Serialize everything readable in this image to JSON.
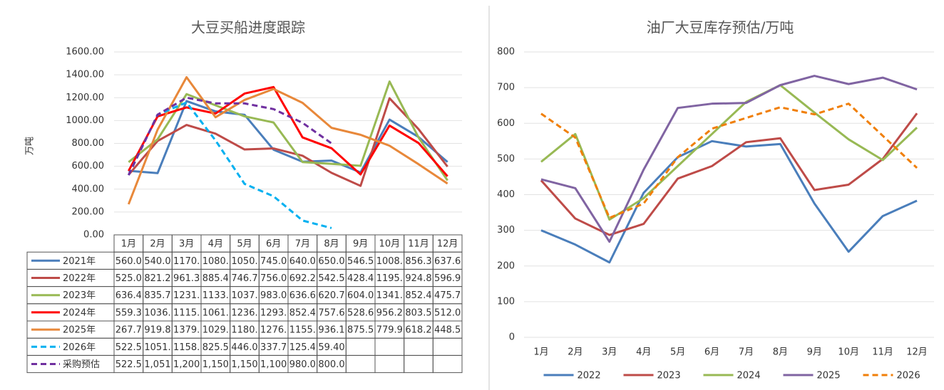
{
  "chart_data": [
    {
      "type": "line",
      "title": "大豆买船进度跟踪",
      "ylabel": "万吨",
      "categories": [
        "1月",
        "2月",
        "3月",
        "4月",
        "5月",
        "6月",
        "7月",
        "8月",
        "9月",
        "10月",
        "11月",
        "12月"
      ],
      "ylim": [
        0,
        1600
      ],
      "yticks": [
        {
          "value": 0,
          "label": "0.00"
        },
        {
          "value": 200,
          "label": "200.00"
        },
        {
          "value": 400,
          "label": "400.00"
        },
        {
          "value": 600,
          "label": "600.00"
        },
        {
          "value": 800,
          "label": "800.00"
        },
        {
          "value": 1000,
          "label": "1000.00"
        },
        {
          "value": 1200,
          "label": "1200.00"
        },
        {
          "value": 1400,
          "label": "1400.00"
        },
        {
          "value": 1600,
          "label": "1600.00"
        }
      ],
      "grid": true,
      "data_table": true,
      "series": [
        {
          "name": "2021年",
          "color": "#4a7ebb",
          "line_style": "solid",
          "values": [
            560.0,
            540.0,
            1170,
            1080,
            1050,
            745.0,
            640.0,
            650.0,
            546.5,
            1008,
            856.3,
            637.6
          ],
          "value_labels": [
            "560.0",
            "540.0",
            "1170.",
            "1080.",
            "1050.",
            "745.0",
            "640.0",
            "650.0",
            "546.5",
            "1008.",
            "856.3",
            "637.6"
          ]
        },
        {
          "name": "2022年",
          "color": "#be4b48",
          "line_style": "solid",
          "values": [
            525.0,
            821.2,
            961.3,
            885.4,
            746.7,
            756.0,
            692.2,
            542.5,
            428.4,
            1195,
            924.8,
            596.9
          ],
          "value_labels": [
            "525.0",
            "821.2",
            "961.3",
            "885.4",
            "746.7",
            "756.0",
            "692.2",
            "542.5",
            "428.4",
            "1195.",
            "924.8",
            "596.9"
          ]
        },
        {
          "name": "2023年",
          "color": "#98b954",
          "line_style": "solid",
          "values": [
            636.4,
            835.7,
            1231,
            1133,
            1037,
            983.0,
            636.6,
            620.7,
            604.0,
            1341,
            852.4,
            475.7
          ],
          "value_labels": [
            "636.4",
            "835.7",
            "1231.",
            "1133.",
            "1037.",
            "983.0",
            "636.6",
            "620.7",
            "604.0",
            "1341.",
            "852.4",
            "475.7"
          ]
        },
        {
          "name": "2024年",
          "color": "#ff0000",
          "line_style": "solid",
          "values": [
            559.3,
            1036,
            1115,
            1061,
            1236,
            1293,
            852.4,
            757.6,
            528.6,
            956.2,
            803.5,
            512.0
          ],
          "value_labels": [
            "559.3",
            "1036.",
            "1115.",
            "1061.",
            "1236.",
            "1293.",
            "852.4",
            "757.6",
            "528.6",
            "956.2",
            "803.5",
            "512.0"
          ]
        },
        {
          "name": "2025年",
          "color": "#e8883a",
          "line_style": "solid",
          "values": [
            267.7,
            919.8,
            1379,
            1029,
            1180,
            1276,
            1155,
            936.1,
            875.5,
            779.9,
            618.2,
            448.5
          ],
          "value_labels": [
            "267.7",
            "919.8",
            "1379.",
            "1029.",
            "1180.",
            "1276.",
            "1155.",
            "936.1",
            "875.5",
            "779.9",
            "618.2",
            "448.5"
          ]
        },
        {
          "name": "2026年",
          "color": "#00b0f0",
          "line_style": "dashed",
          "values": [
            522.5,
            1051,
            1158,
            825.5,
            446.0,
            337.7,
            125.4,
            59.4,
            null,
            null,
            null,
            null
          ],
          "value_labels": [
            "522.5",
            "1051.",
            "1158.",
            "825.5",
            "446.0",
            "337.7",
            "125.4",
            "59.40",
            null,
            null,
            null,
            null
          ]
        },
        {
          "name": "采购预估",
          "color": "#7030a0",
          "line_style": "dashed",
          "values": [
            522.5,
            1051,
            1200,
            1150,
            1150,
            1100,
            980.0,
            800.0,
            null,
            null,
            null,
            null
          ],
          "value_labels": [
            "522.5",
            "1,051",
            "1,200",
            "1,150",
            "1,150",
            "1,100",
            "980.0",
            "800.0",
            null,
            null,
            null,
            null
          ]
        }
      ]
    },
    {
      "type": "line",
      "title": "油厂大豆库存预估/万吨",
      "categories": [
        "1月",
        "2月",
        "3月",
        "4月",
        "5月",
        "6月",
        "7月",
        "8月",
        "9月",
        "10月",
        "11月",
        "12月"
      ],
      "ylim": [
        0,
        800
      ],
      "yticks": [
        0,
        100,
        200,
        300,
        400,
        500,
        600,
        700,
        800
      ],
      "grid": true,
      "legend": "bottom",
      "series": [
        {
          "name": "2022",
          "color": "#4a7ebb",
          "line_style": "solid",
          "values": [
            300,
            260,
            210,
            405,
            505,
            550,
            535,
            542,
            375,
            240,
            340,
            383
          ]
        },
        {
          "name": "2023",
          "color": "#be4b48",
          "line_style": "solid",
          "values": [
            440,
            333,
            287,
            318,
            445,
            480,
            547,
            558,
            413,
            428,
            500,
            628
          ]
        },
        {
          "name": "2024",
          "color": "#98b954",
          "line_style": "solid",
          "values": [
            492,
            570,
            330,
            390,
            480,
            570,
            660,
            707,
            630,
            555,
            497,
            588
          ]
        },
        {
          "name": "2025",
          "color": "#8064a2",
          "line_style": "solid",
          "values": [
            443,
            418,
            268,
            470,
            643,
            655,
            657,
            707,
            733,
            710,
            728,
            695
          ]
        },
        {
          "name": "2026",
          "color": "#f07f09",
          "line_style": "dashed",
          "values": [
            627,
            560,
            335,
            375,
            505,
            585,
            615,
            645,
            625,
            655,
            565,
            475
          ]
        }
      ]
    }
  ]
}
